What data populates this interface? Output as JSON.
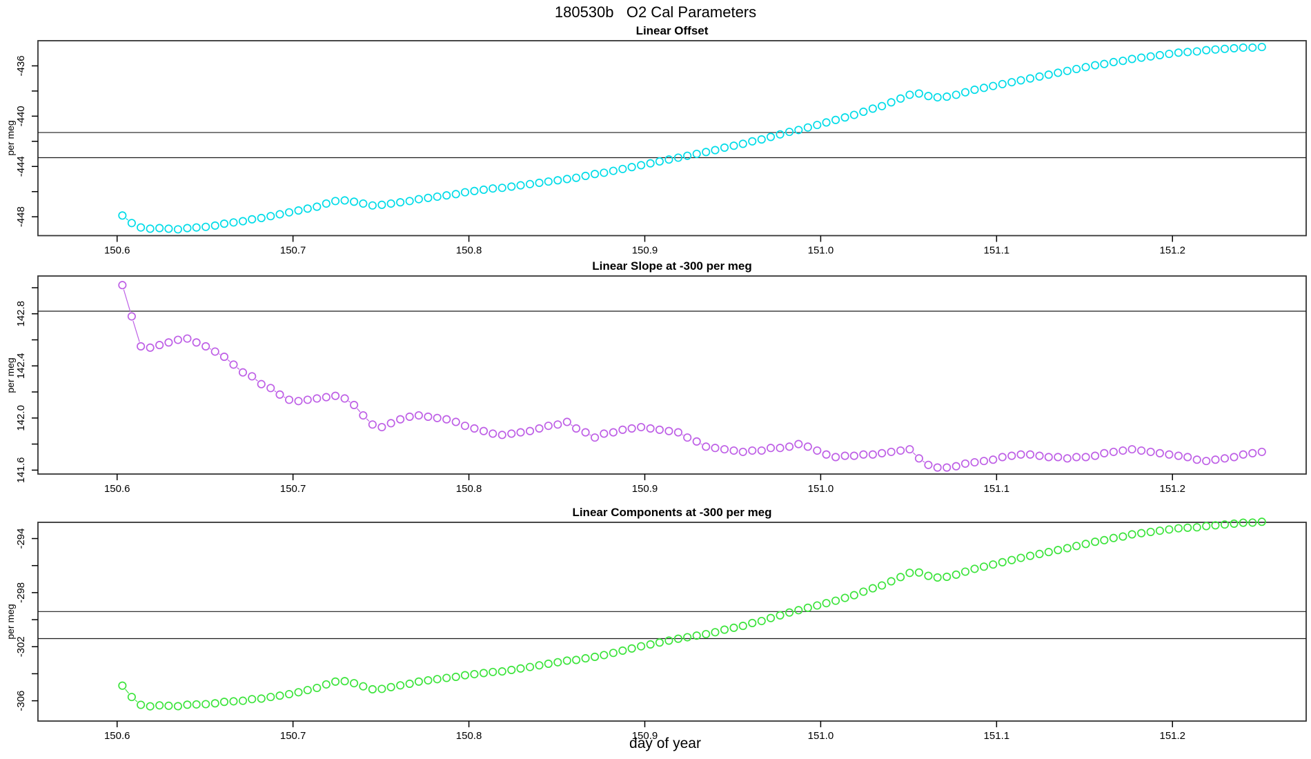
{
  "main_title": "180530b   O2 Cal Parameters",
  "xlabel": "day of year",
  "axis_color": "#333333",
  "ref_line_color": "#1a1a1a",
  "xlim": [
    150.555,
    151.276
  ],
  "xticks": {
    "values": [
      150.6,
      150.7,
      150.8,
      150.9,
      151.0,
      151.1,
      151.2
    ],
    "labels": [
      "150.6",
      "150.7",
      "150.8",
      "150.9",
      "151.0",
      "151.1",
      "151.2"
    ]
  },
  "x_days": [
    150.603,
    150.6083,
    150.6135,
    150.6188,
    150.6241,
    150.6293,
    150.6346,
    150.6399,
    150.6451,
    150.6504,
    150.6557,
    150.6609,
    150.6662,
    150.6715,
    150.6767,
    150.682,
    150.6873,
    150.6925,
    150.6978,
    150.7031,
    150.7083,
    150.7136,
    150.7189,
    150.7241,
    150.7294,
    150.7347,
    150.7399,
    150.7452,
    150.7505,
    150.7557,
    150.761,
    150.7663,
    150.7715,
    150.7768,
    150.782,
    150.7873,
    150.7926,
    150.7978,
    150.8031,
    150.8084,
    150.8136,
    150.8189,
    150.8242,
    150.8294,
    150.8347,
    150.84,
    150.8452,
    150.8505,
    150.8558,
    150.861,
    150.8663,
    150.8716,
    150.8768,
    150.8821,
    150.8874,
    150.8926,
    150.8979,
    150.9032,
    150.9084,
    150.9137,
    150.919,
    150.9242,
    150.9295,
    150.9348,
    150.94,
    150.9453,
    150.9506,
    150.9558,
    150.9611,
    150.9664,
    150.9716,
    150.9769,
    150.9822,
    150.9874,
    150.9927,
    150.998,
    151.0032,
    151.0085,
    151.0138,
    151.019,
    151.0243,
    151.0296,
    151.0348,
    151.0401,
    151.0454,
    151.0506,
    151.0559,
    151.0612,
    151.0664,
    151.0717,
    151.077,
    151.0822,
    151.0875,
    151.0928,
    151.098,
    151.1033,
    151.1086,
    151.1138,
    151.1191,
    151.1244,
    151.1296,
    151.1349,
    151.1402,
    151.1454,
    151.1507,
    151.156,
    151.1612,
    151.1665,
    151.1718,
    151.177,
    151.1823,
    151.1876,
    151.1928,
    151.1981,
    151.2034,
    151.2086,
    151.2139,
    151.2192,
    151.2244,
    151.2297,
    151.235,
    151.2402,
    151.2455,
    151.2508
  ],
  "chart_data": [
    {
      "type": "scatter",
      "title": "Linear Offset",
      "ylabel": "per meg",
      "color": "#00dce8",
      "ylim": [
        -449.5,
        -434.0
      ],
      "yticks": {
        "values": [
          -436,
          -440,
          -444,
          -448
        ],
        "labels": [
          "-436",
          "-440",
          "-444",
          "-448"
        ]
      },
      "yticks_minor": [
        -438,
        -442,
        -446
      ],
      "ref_lines": [
        -441.3,
        -443.3
      ],
      "y": [
        -447.9,
        -448.5,
        -448.85,
        -448.95,
        -448.9,
        -448.95,
        -449.0,
        -448.9,
        -448.85,
        -448.8,
        -448.7,
        -448.55,
        -448.45,
        -448.35,
        -448.2,
        -448.1,
        -447.95,
        -447.8,
        -447.65,
        -447.5,
        -447.35,
        -447.2,
        -446.95,
        -446.75,
        -446.7,
        -446.8,
        -446.95,
        -447.1,
        -447.05,
        -446.95,
        -446.85,
        -446.75,
        -446.6,
        -446.5,
        -446.4,
        -446.3,
        -446.2,
        -446.05,
        -445.95,
        -445.85,
        -445.75,
        -445.7,
        -445.6,
        -445.5,
        -445.4,
        -445.3,
        -445.2,
        -445.1,
        -445.0,
        -444.9,
        -444.75,
        -444.6,
        -444.5,
        -444.35,
        -444.2,
        -444.05,
        -443.9,
        -443.75,
        -443.6,
        -443.45,
        -443.3,
        -443.15,
        -443.0,
        -442.85,
        -442.7,
        -442.5,
        -442.35,
        -442.2,
        -442.0,
        -441.85,
        -441.65,
        -441.45,
        -441.25,
        -441.1,
        -440.9,
        -440.7,
        -440.5,
        -440.3,
        -440.1,
        -439.9,
        -439.65,
        -439.4,
        -439.2,
        -438.9,
        -438.6,
        -438.3,
        -438.2,
        -438.4,
        -438.5,
        -438.45,
        -438.3,
        -438.1,
        -437.9,
        -437.75,
        -437.6,
        -437.45,
        -437.3,
        -437.15,
        -437.0,
        -436.85,
        -436.7,
        -436.55,
        -436.4,
        -436.25,
        -436.1,
        -435.95,
        -435.85,
        -435.7,
        -435.6,
        -435.45,
        -435.35,
        -435.25,
        -435.15,
        -435.05,
        -434.95,
        -434.9,
        -434.85,
        -434.75,
        -434.7,
        -434.65,
        -434.6,
        -434.55,
        -434.55,
        -434.5
      ]
    },
    {
      "type": "scatter",
      "title": "Linear Slope at -300 per meg",
      "ylabel": "per meg",
      "color": "#be5fe6",
      "ylim": [
        141.57,
        143.09
      ],
      "yticks": {
        "values": [
          142.8,
          142.4,
          142.0,
          141.6
        ],
        "labels": [
          "142.8",
          "142.4",
          "142.0",
          "141.6"
        ]
      },
      "yticks_minor": [
        143.0,
        142.6,
        142.2,
        141.8
      ],
      "ref_lines": [
        142.82
      ],
      "y": [
        143.02,
        142.78,
        142.55,
        142.54,
        142.56,
        142.58,
        142.6,
        142.61,
        142.58,
        142.55,
        142.51,
        142.47,
        142.41,
        142.35,
        142.32,
        142.26,
        142.23,
        142.18,
        142.14,
        142.13,
        142.14,
        142.15,
        142.16,
        142.17,
        142.15,
        142.1,
        142.02,
        141.95,
        141.93,
        141.96,
        141.99,
        142.01,
        142.02,
        142.01,
        142.0,
        141.99,
        141.97,
        141.94,
        141.92,
        141.9,
        141.88,
        141.87,
        141.88,
        141.89,
        141.9,
        141.92,
        141.94,
        141.95,
        141.97,
        141.92,
        141.89,
        141.85,
        141.88,
        141.89,
        141.91,
        141.92,
        141.93,
        141.92,
        141.91,
        141.9,
        141.89,
        141.85,
        141.82,
        141.78,
        141.77,
        141.76,
        141.75,
        141.74,
        141.75,
        141.75,
        141.77,
        141.77,
        141.78,
        141.8,
        141.78,
        141.75,
        141.72,
        141.7,
        141.71,
        141.71,
        141.72,
        141.72,
        141.73,
        141.74,
        141.75,
        141.76,
        141.69,
        141.64,
        141.62,
        141.62,
        141.63,
        141.65,
        141.66,
        141.67,
        141.68,
        141.7,
        141.71,
        141.72,
        141.72,
        141.71,
        141.7,
        141.7,
        141.69,
        141.7,
        141.7,
        141.71,
        141.73,
        141.74,
        141.75,
        141.76,
        141.75,
        141.74,
        141.73,
        141.72,
        141.71,
        141.7,
        141.68,
        141.67,
        141.68,
        141.69,
        141.7,
        141.72,
        141.73,
        141.74
      ]
    },
    {
      "type": "scatter",
      "title": "Linear Components at -300 per meg",
      "ylabel": "per meg",
      "color": "#3ce43c",
      "ylim": [
        -307.5,
        -292.8
      ],
      "yticks": {
        "values": [
          -294,
          -298,
          -302,
          -306
        ],
        "labels": [
          "-294",
          "-298",
          "-302",
          "-306"
        ]
      },
      "yticks_minor": [
        -296,
        -300,
        -304
      ],
      "ref_lines": [
        -299.4,
        -301.4
      ],
      "y": [
        -304.88,
        -305.72,
        -306.3,
        -306.41,
        -306.34,
        -306.37,
        -306.4,
        -306.29,
        -306.27,
        -306.25,
        -306.19,
        -306.08,
        -306.04,
        -306.0,
        -305.88,
        -305.84,
        -305.72,
        -305.62,
        -305.51,
        -305.37,
        -305.21,
        -305.05,
        -304.79,
        -304.58,
        -304.55,
        -304.7,
        -304.93,
        -305.15,
        -305.12,
        -304.99,
        -304.86,
        -304.74,
        -304.58,
        -304.49,
        -304.4,
        -304.31,
        -304.23,
        -304.11,
        -304.03,
        -303.95,
        -303.87,
        -303.83,
        -303.72,
        -303.61,
        -303.5,
        -303.38,
        -303.26,
        -303.15,
        -303.03,
        -302.98,
        -302.86,
        -302.75,
        -302.62,
        -302.46,
        -302.29,
        -302.13,
        -301.97,
        -301.83,
        -301.69,
        -301.55,
        -301.41,
        -301.3,
        -301.18,
        -301.07,
        -300.93,
        -300.74,
        -300.6,
        -300.46,
        -300.25,
        -300.1,
        -299.88,
        -299.68,
        -299.47,
        -299.3,
        -299.12,
        -298.95,
        -298.78,
        -298.6,
        -298.39,
        -298.19,
        -297.93,
        -297.68,
        -297.47,
        -297.16,
        -296.85,
        -296.54,
        -296.51,
        -296.76,
        -296.88,
        -296.83,
        -296.67,
        -296.45,
        -296.24,
        -296.08,
        -295.92,
        -295.75,
        -295.59,
        -295.43,
        -295.28,
        -295.14,
        -295.0,
        -294.85,
        -294.71,
        -294.55,
        -294.4,
        -294.24,
        -294.12,
        -293.96,
        -293.85,
        -293.69,
        -293.6,
        -293.51,
        -293.42,
        -293.33,
        -293.24,
        -293.2,
        -293.17,
        -293.08,
        -293.02,
        -292.96,
        -292.9,
        -292.83,
        -292.82,
        -292.76
      ]
    }
  ]
}
